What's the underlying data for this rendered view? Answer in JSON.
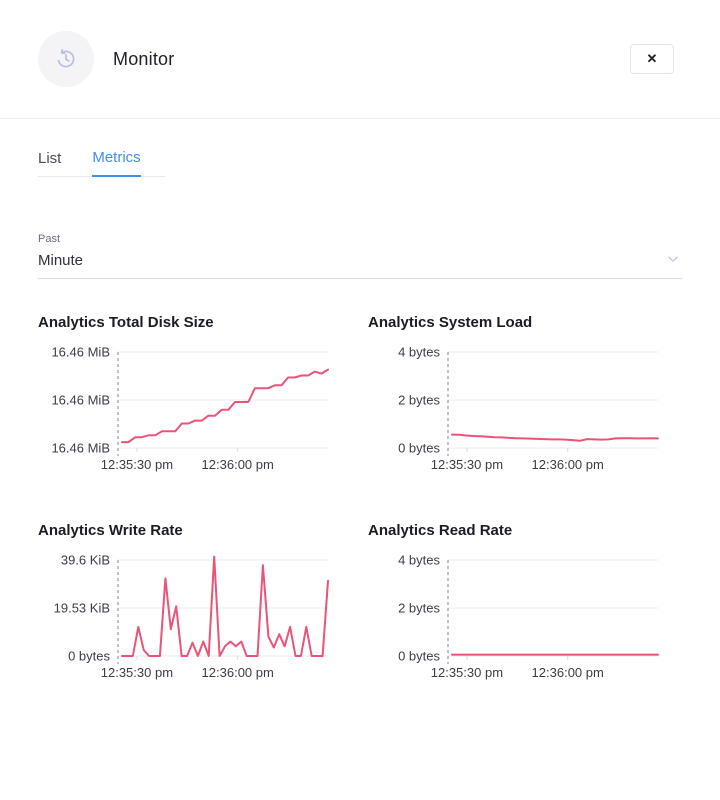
{
  "header": {
    "title": "Monitor",
    "close_label": "✕",
    "icon": "history-clock-icon"
  },
  "tabs": {
    "items": [
      {
        "label": "List"
      },
      {
        "label": "Metrics"
      }
    ],
    "active_index": 1
  },
  "filter": {
    "label": "Past",
    "value": "Minute"
  },
  "colors": {
    "line_pink": "#ec5378",
    "accent_blue": "#3f8fee",
    "axis_dash": "#6b87a5",
    "grid": "#ececef",
    "tick_text": "#3a3d46",
    "icon_lavender": "#b9bfe0"
  },
  "chart_data": [
    {
      "type": "line",
      "title": "Analytics Total Disk Size",
      "y_ticks": [
        "16.46 MiB",
        "16.46 MiB",
        "16.46 MiB"
      ],
      "x_ticks": [
        "12:35:30 pm",
        "12:36:00 pm"
      ],
      "ylim": [
        16.455,
        16.4648
      ],
      "values": [
        16.4556,
        16.4556,
        16.4561,
        16.4561,
        16.4563,
        16.4563,
        16.4567,
        16.4567,
        16.4567,
        16.4575,
        16.4575,
        16.4578,
        16.4578,
        16.4583,
        16.4583,
        16.4589,
        16.4589,
        16.4597,
        16.4597,
        16.4597,
        16.4611,
        16.4611,
        16.4611,
        16.4614,
        16.4614,
        16.4622,
        16.4622,
        16.4624,
        16.4624,
        16.4628,
        16.4626,
        16.463
      ],
      "unit": "MiB",
      "grid": true,
      "legend": "none"
    },
    {
      "type": "line",
      "title": "Analytics System Load",
      "y_ticks": [
        "4 bytes",
        "2 bytes",
        "0 bytes"
      ],
      "x_ticks": [
        "12:35:30 pm",
        "12:36:00 pm"
      ],
      "ylim": [
        0,
        4
      ],
      "values": [
        0.56,
        0.55,
        0.52,
        0.5,
        0.49,
        0.47,
        0.45,
        0.44,
        0.42,
        0.41,
        0.4,
        0.39,
        0.38,
        0.37,
        0.36,
        0.36,
        0.35,
        0.33,
        0.3,
        0.37,
        0.36,
        0.35,
        0.36,
        0.4,
        0.41,
        0.41,
        0.4,
        0.4,
        0.41,
        0.4
      ],
      "unit": "bytes",
      "grid": true,
      "legend": "none"
    },
    {
      "type": "line",
      "title": "Analytics Write Rate",
      "y_ticks": [
        "39.6 KiB",
        "19.53 KiB",
        "0 bytes"
      ],
      "x_ticks": [
        "12:35:30 pm",
        "12:36:00 pm"
      ],
      "ylim": [
        0,
        39.6
      ],
      "values": [
        0,
        0,
        0,
        12,
        2.5,
        0,
        0,
        0,
        32,
        11,
        20.5,
        0,
        0,
        5.5,
        0,
        6,
        0,
        41,
        0,
        4,
        6,
        4,
        6,
        0,
        0,
        0,
        37.5,
        8,
        3.5,
        9,
        4,
        12,
        0,
        0,
        12,
        0,
        0,
        0,
        31
      ],
      "unit": "KiB",
      "grid": true,
      "legend": "none"
    },
    {
      "type": "line",
      "title": "Analytics Read Rate",
      "y_ticks": [
        "4 bytes",
        "2 bytes",
        "0 bytes"
      ],
      "x_ticks": [
        "12:35:30 pm",
        "12:36:00 pm"
      ],
      "ylim": [
        0,
        4
      ],
      "values": [
        0.06,
        0.06,
        0.06,
        0.06,
        0.06,
        0.06,
        0.06,
        0.06,
        0.06,
        0.06,
        0.06,
        0.06,
        0.06,
        0.06,
        0.06,
        0.06,
        0.06,
        0.06,
        0.06,
        0.06,
        0.06,
        0.06,
        0.06,
        0.06,
        0.06,
        0.06,
        0.06,
        0.06,
        0.06,
        0.06
      ],
      "unit": "bytes",
      "grid": true,
      "legend": "none"
    }
  ]
}
